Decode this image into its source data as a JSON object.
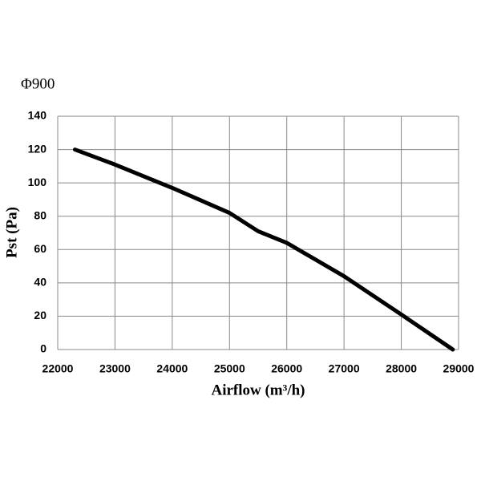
{
  "chart_data": {
    "type": "line",
    "title": "Φ900",
    "x_label": "Airflow (m³/h)",
    "y_label": "Pst (Pa)",
    "x": [
      22300,
      23000,
      24000,
      25000,
      25500,
      26000,
      27000,
      28000,
      28900
    ],
    "series": [
      {
        "color": "#000000",
        "values": [
          120,
          111,
          97,
          82,
          71,
          64,
          44,
          21,
          0
        ]
      }
    ],
    "xlim": [
      22000,
      29000
    ],
    "xticks": [
      22000,
      23000,
      24000,
      25000,
      26000,
      27000,
      28000,
      29000
    ],
    "ylim": [
      0,
      140
    ],
    "yticks": [
      0,
      20,
      40,
      60,
      80,
      100,
      120,
      140
    ],
    "grid": true
  }
}
